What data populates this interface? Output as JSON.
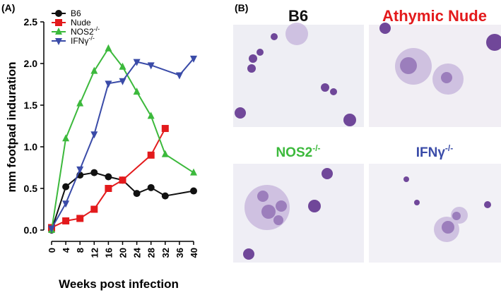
{
  "chart_data": {
    "type": "line",
    "panel_label": "(A)",
    "xlabel": "Weeks post infection",
    "ylabel": "mm footpad induration",
    "xlim": [
      0,
      40
    ],
    "xticks": [
      0,
      4,
      8,
      12,
      16,
      20,
      24,
      28,
      32,
      36,
      40
    ],
    "ylim": [
      0,
      2.5
    ],
    "yticks": [
      {
        "value": 0,
        "label": "0.0"
      },
      0.5,
      {
        "value": 1,
        "label": "1.0"
      },
      1.5,
      {
        "value": 2,
        "label": "2.0"
      },
      2.5
    ],
    "series": [
      {
        "name": "B6",
        "color": "#111111",
        "marker": "circle",
        "x": [
          0,
          4,
          8,
          12,
          16,
          20,
          24,
          28,
          32,
          40
        ],
        "values": [
          0.0,
          0.52,
          0.66,
          0.69,
          0.64,
          0.6,
          0.44,
          0.51,
          0.41,
          0.47
        ]
      },
      {
        "name": "Nude",
        "color": "#e31a1c",
        "marker": "square",
        "x": [
          0,
          4,
          8,
          12,
          16,
          20,
          28,
          32
        ],
        "values": [
          0.03,
          0.11,
          0.14,
          0.25,
          0.5,
          0.6,
          0.9,
          1.22
        ]
      },
      {
        "name": "NOS2",
        "superscript": "-/-",
        "color": "#3cb93c",
        "marker": "triangle-up",
        "x": [
          0,
          4,
          8,
          12,
          16,
          20,
          24,
          28,
          32,
          40
        ],
        "values": [
          0.0,
          1.1,
          1.52,
          1.91,
          2.18,
          1.96,
          1.66,
          1.37,
          0.91,
          0.69
        ]
      },
      {
        "name": "IFNγ",
        "superscript": "-/-",
        "color": "#3a4ba8",
        "marker": "triangle-down",
        "x": [
          0,
          4,
          8,
          12,
          16,
          20,
          24,
          28,
          36,
          40
        ],
        "values": [
          0.02,
          0.32,
          0.73,
          1.15,
          1.76,
          1.79,
          2.02,
          1.98,
          1.86,
          2.06
        ]
      }
    ]
  },
  "panel_b": {
    "label": "(B)",
    "images": [
      {
        "title": "B6",
        "color": "#111111"
      },
      {
        "title": "Athymic Nude",
        "color": "#e31a1c"
      },
      {
        "title": "NOS2",
        "superscript": "-/-",
        "color": "#3cb93c"
      },
      {
        "title": "IFNγ",
        "superscript": "-/-",
        "color": "#3a4ba8"
      }
    ]
  }
}
